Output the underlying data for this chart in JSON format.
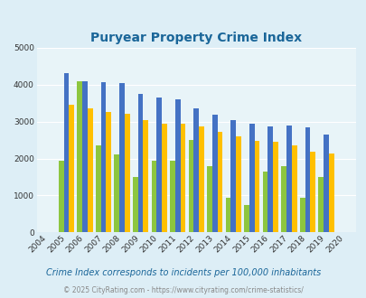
{
  "title": "Puryear Property Crime Index",
  "years": [
    "2004",
    "2005",
    "2006",
    "2007",
    "2008",
    "2009",
    "2010",
    "2011",
    "2012",
    "2013",
    "2014",
    "2015",
    "2016",
    "2017",
    "2018",
    "2019",
    "2020"
  ],
  "puryear": [
    0,
    1950,
    4100,
    2350,
    2100,
    1500,
    1950,
    1950,
    2500,
    1800,
    950,
    750,
    1650,
    1800,
    950,
    1500,
    0
  ],
  "tennessee": [
    0,
    4300,
    4100,
    4075,
    4050,
    3750,
    3650,
    3600,
    3350,
    3175,
    3050,
    2950,
    2875,
    2900,
    2850,
    2650,
    0
  ],
  "national": [
    0,
    3450,
    3350,
    3250,
    3200,
    3050,
    2950,
    2950,
    2875,
    2725,
    2600,
    2475,
    2450,
    2350,
    2175,
    2125,
    0
  ],
  "puryear_color": "#8dc63f",
  "tennessee_color": "#4472c4",
  "national_color": "#ffc000",
  "bg_color": "#ddeef6",
  "plot_bg": "#e8f4f8",
  "ylim": [
    0,
    5000
  ],
  "yticks": [
    0,
    1000,
    2000,
    3000,
    4000,
    5000
  ],
  "subtitle": "Crime Index corresponds to incidents per 100,000 inhabitants",
  "footer": "© 2025 CityRating.com - https://www.cityrating.com/crime-statistics/",
  "title_color": "#1a6699",
  "subtitle_color": "#1a6699",
  "footer_color": "#888888"
}
